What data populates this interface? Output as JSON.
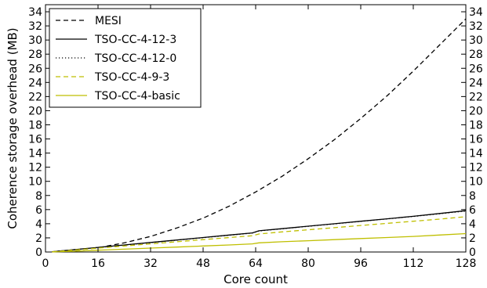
{
  "chart_data": {
    "type": "line",
    "title": "",
    "xlabel": "Core count",
    "ylabel": "Coherence storage overhead (MB)",
    "xlim": [
      0,
      128
    ],
    "ylim": [
      0,
      35
    ],
    "xticks": [
      0,
      16,
      32,
      48,
      64,
      80,
      96,
      112,
      128
    ],
    "yticks": [
      0,
      2,
      4,
      6,
      8,
      10,
      12,
      14,
      16,
      18,
      20,
      22,
      24,
      26,
      28,
      30,
      32,
      34
    ],
    "right_axis_ticks": true,
    "grid": false,
    "legend_position": "top-left",
    "series": [
      {
        "name": "MESI",
        "color": "#000000",
        "dash": "dashed",
        "x": [
          2,
          8,
          16,
          24,
          32,
          40,
          48,
          56,
          64,
          72,
          80,
          88,
          96,
          104,
          112,
          120,
          128
        ],
        "y": [
          0.02,
          0.2,
          0.6,
          1.3,
          2.2,
          3.4,
          4.8,
          6.5,
          8.5,
          10.7,
          13.2,
          15.9,
          18.9,
          22.1,
          25.6,
          29.3,
          33.0
        ]
      },
      {
        "name": "TSO-CC-4-12-3",
        "color": "#000000",
        "dash": "solid",
        "x": [
          2,
          8,
          16,
          24,
          32,
          40,
          48,
          56,
          63,
          65,
          72,
          80,
          88,
          96,
          104,
          112,
          120,
          128
        ],
        "y": [
          0.03,
          0.3,
          0.65,
          1.0,
          1.35,
          1.7,
          2.05,
          2.4,
          2.7,
          3.0,
          3.3,
          3.65,
          4.0,
          4.35,
          4.7,
          5.05,
          5.45,
          5.85
        ]
      },
      {
        "name": "TSO-CC-4-12-0",
        "color": "#000000",
        "dash": "dotted",
        "x": [
          2,
          8,
          16,
          24,
          32,
          40,
          48,
          56,
          63,
          65,
          72,
          80,
          88,
          96,
          104,
          112,
          120,
          128
        ],
        "y": [
          0.03,
          0.3,
          0.63,
          0.98,
          1.33,
          1.68,
          2.03,
          2.38,
          2.68,
          2.98,
          3.28,
          3.63,
          3.98,
          4.33,
          4.68,
          5.03,
          5.42,
          5.8
        ]
      },
      {
        "name": "TSO-CC-4-9-3",
        "color": "#bfbf00",
        "dash": "dashed",
        "x": [
          2,
          8,
          16,
          24,
          32,
          40,
          48,
          56,
          63,
          65,
          72,
          80,
          88,
          96,
          104,
          112,
          120,
          128
        ],
        "y": [
          0.02,
          0.25,
          0.55,
          0.85,
          1.15,
          1.45,
          1.75,
          2.05,
          2.3,
          2.55,
          2.85,
          3.15,
          3.45,
          3.75,
          4.05,
          4.35,
          4.65,
          5.0
        ]
      },
      {
        "name": "TSO-CC-4-basic",
        "color": "#bfbf00",
        "dash": "solid",
        "x": [
          2,
          8,
          16,
          24,
          32,
          40,
          48,
          56,
          63,
          65,
          72,
          80,
          88,
          96,
          104,
          112,
          120,
          128
        ],
        "y": [
          0.01,
          0.1,
          0.25,
          0.4,
          0.55,
          0.7,
          0.85,
          1.0,
          1.15,
          1.3,
          1.45,
          1.6,
          1.75,
          1.9,
          2.05,
          2.2,
          2.4,
          2.6
        ]
      }
    ]
  }
}
